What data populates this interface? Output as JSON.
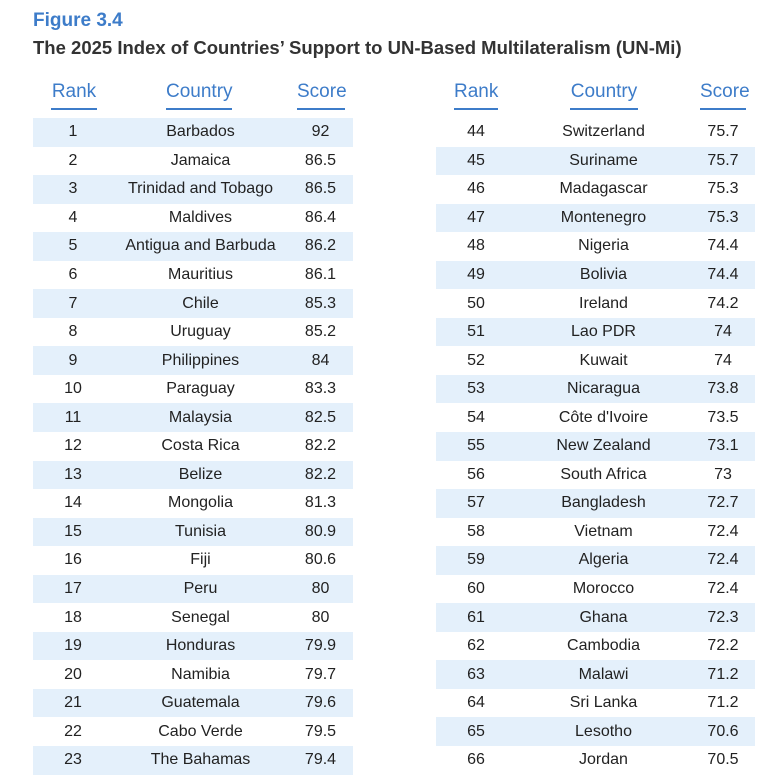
{
  "figure": {
    "label": "Figure 3.4",
    "title": "The 2025 Index of Countries’ Support to UN-Based Multilateralism (UN-Mi)"
  },
  "headers": {
    "rank": "Rank",
    "country": "Country",
    "score": "Score"
  },
  "colors": {
    "accent": "#3d7cc9",
    "row_band": "#e4f0fb"
  },
  "left_rows": [
    {
      "rank": "1",
      "country": "Barbados",
      "score": "92"
    },
    {
      "rank": "2",
      "country": "Jamaica",
      "score": "86.5"
    },
    {
      "rank": "3",
      "country": "Trinidad and Tobago",
      "score": "86.5"
    },
    {
      "rank": "4",
      "country": "Maldives",
      "score": "86.4"
    },
    {
      "rank": "5",
      "country": "Antigua and Barbuda",
      "score": "86.2"
    },
    {
      "rank": "6",
      "country": "Mauritius",
      "score": "86.1"
    },
    {
      "rank": "7",
      "country": "Chile",
      "score": "85.3"
    },
    {
      "rank": "8",
      "country": "Uruguay",
      "score": "85.2"
    },
    {
      "rank": "9",
      "country": "Philippines",
      "score": "84"
    },
    {
      "rank": "10",
      "country": "Paraguay",
      "score": "83.3"
    },
    {
      "rank": "11",
      "country": "Malaysia",
      "score": "82.5"
    },
    {
      "rank": "12",
      "country": "Costa Rica",
      "score": "82.2"
    },
    {
      "rank": "13",
      "country": "Belize",
      "score": "82.2"
    },
    {
      "rank": "14",
      "country": "Mongolia",
      "score": "81.3"
    },
    {
      "rank": "15",
      "country": "Tunisia",
      "score": "80.9"
    },
    {
      "rank": "16",
      "country": "Fiji",
      "score": "80.6"
    },
    {
      "rank": "17",
      "country": "Peru",
      "score": "80"
    },
    {
      "rank": "18",
      "country": "Senegal",
      "score": "80"
    },
    {
      "rank": "19",
      "country": "Honduras",
      "score": "79.9"
    },
    {
      "rank": "20",
      "country": "Namibia",
      "score": "79.7"
    },
    {
      "rank": "21",
      "country": "Guatemala",
      "score": "79.6"
    },
    {
      "rank": "22",
      "country": "Cabo Verde",
      "score": "79.5"
    },
    {
      "rank": "23",
      "country": "The Bahamas",
      "score": "79.4"
    }
  ],
  "right_rows": [
    {
      "rank": "44",
      "country": "Switzerland",
      "score": "75.7"
    },
    {
      "rank": "45",
      "country": "Suriname",
      "score": "75.7"
    },
    {
      "rank": "46",
      "country": "Madagascar",
      "score": "75.3"
    },
    {
      "rank": "47",
      "country": "Montenegro",
      "score": "75.3"
    },
    {
      "rank": "48",
      "country": "Nigeria",
      "score": "74.4"
    },
    {
      "rank": "49",
      "country": "Bolivia",
      "score": "74.4"
    },
    {
      "rank": "50",
      "country": "Ireland",
      "score": "74.2"
    },
    {
      "rank": "51",
      "country": "Lao PDR",
      "score": "74"
    },
    {
      "rank": "52",
      "country": "Kuwait",
      "score": "74"
    },
    {
      "rank": "53",
      "country": "Nicaragua",
      "score": "73.8"
    },
    {
      "rank": "54",
      "country": "Côte d'Ivoire",
      "score": "73.5"
    },
    {
      "rank": "55",
      "country": "New Zealand",
      "score": "73.1"
    },
    {
      "rank": "56",
      "country": "South Africa",
      "score": "73"
    },
    {
      "rank": "57",
      "country": "Bangladesh",
      "score": "72.7"
    },
    {
      "rank": "58",
      "country": "Vietnam",
      "score": "72.4"
    },
    {
      "rank": "59",
      "country": "Algeria",
      "score": "72.4"
    },
    {
      "rank": "60",
      "country": "Morocco",
      "score": "72.4"
    },
    {
      "rank": "61",
      "country": "Ghana",
      "score": "72.3"
    },
    {
      "rank": "62",
      "country": "Cambodia",
      "score": "72.2"
    },
    {
      "rank": "63",
      "country": "Malawi",
      "score": "71.2"
    },
    {
      "rank": "64",
      "country": "Sri Lanka",
      "score": "71.2"
    },
    {
      "rank": "65",
      "country": "Lesotho",
      "score": "70.6"
    },
    {
      "rank": "66",
      "country": "Jordan",
      "score": "70.5"
    }
  ]
}
